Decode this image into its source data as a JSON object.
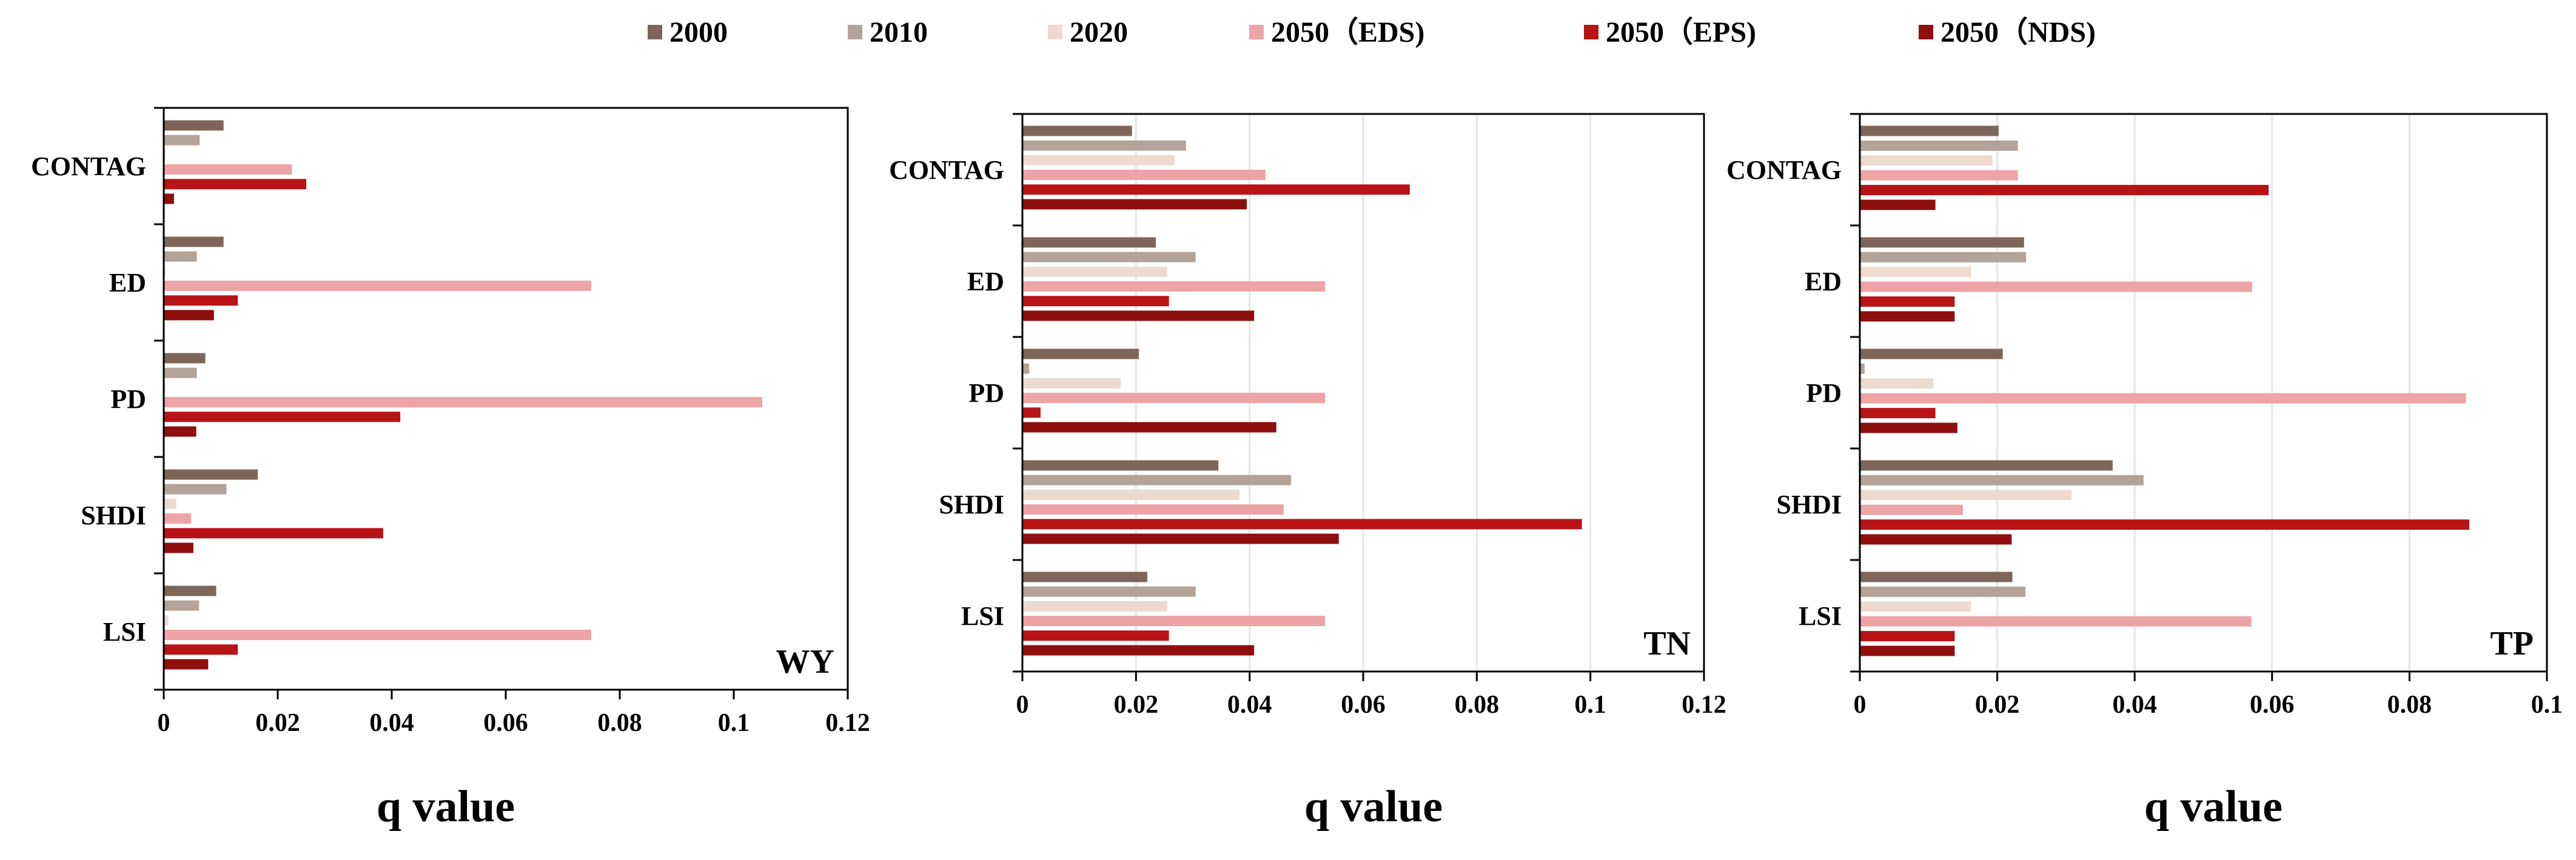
{
  "legend": [
    {
      "name": "2000",
      "color": "#7d6659"
    },
    {
      "name": "2010",
      "color": "#b3a398"
    },
    {
      "name": "2020",
      "color": "#ecdad0"
    },
    {
      "name": "2050（EDS)",
      "color": "#eca4a6"
    },
    {
      "name": "2050（EPS)",
      "color": "#b81317"
    },
    {
      "name": "2050（NDS)",
      "color": "#8f0e0e"
    }
  ],
  "chart_data": [
    {
      "type": "bar",
      "orientation": "horizontal",
      "title": "WY",
      "xlabel": "q value",
      "ylabel": "",
      "xlim": [
        0,
        0.12
      ],
      "xticks": [
        0,
        0.02,
        0.04,
        0.06,
        0.08,
        0.1,
        0.12
      ],
      "xtick_labels": [
        "0",
        "0.02",
        "0.04",
        "0.06",
        "0.08",
        "0.1",
        "0.12"
      ],
      "gridlines": false,
      "categories": [
        "CONTAG",
        "ED",
        "PD",
        "SHDI",
        "LSI"
      ],
      "series": [
        {
          "name": "2000",
          "values": [
            0.0105,
            0.0105,
            0.0073,
            0.0165,
            0.0092
          ]
        },
        {
          "name": "2010",
          "values": [
            0.0063,
            0.0058,
            0.0058,
            0.011,
            0.0062
          ]
        },
        {
          "name": "2020",
          "values": [
            0.0003,
            0.0003,
            0.0003,
            0.0022,
            0.0008
          ]
        },
        {
          "name": "2050（EDS)",
          "values": [
            0.0225,
            0.075,
            0.105,
            0.0048,
            0.075
          ]
        },
        {
          "name": "2050（EPS)",
          "values": [
            0.025,
            0.013,
            0.0415,
            0.0385,
            0.013
          ]
        },
        {
          "name": "2050（NDS)",
          "values": [
            0.0018,
            0.0088,
            0.0057,
            0.0052,
            0.0078
          ]
        }
      ]
    },
    {
      "type": "bar",
      "orientation": "horizontal",
      "title": "TN",
      "xlabel": "q value",
      "ylabel": "",
      "xlim": [
        0,
        0.12
      ],
      "xticks": [
        0,
        0.02,
        0.04,
        0.06,
        0.08,
        0.1,
        0.12
      ],
      "xtick_labels": [
        "0",
        "0.02",
        "0.04",
        "0.06",
        "0.08",
        "0.1",
        "0.12"
      ],
      "gridlines": true,
      "categories": [
        "CONTAG",
        "ED",
        "PD",
        "SHDI",
        "LSI"
      ],
      "series": [
        {
          "name": "2000",
          "values": [
            0.0193,
            0.0235,
            0.0205,
            0.0345,
            0.022
          ]
        },
        {
          "name": "2010",
          "values": [
            0.0288,
            0.0305,
            0.0012,
            0.0473,
            0.0305
          ]
        },
        {
          "name": "2020",
          "values": [
            0.0268,
            0.0255,
            0.0173,
            0.0382,
            0.0255
          ]
        },
        {
          "name": "2050（EDS)",
          "values": [
            0.0428,
            0.0533,
            0.0533,
            0.046,
            0.0533
          ]
        },
        {
          "name": "2050（EPS)",
          "values": [
            0.0682,
            0.0258,
            0.0032,
            0.0985,
            0.0258
          ]
        },
        {
          "name": "2050（NDS)",
          "values": [
            0.0395,
            0.0408,
            0.0447,
            0.0557,
            0.0408
          ]
        }
      ]
    },
    {
      "type": "bar",
      "orientation": "horizontal",
      "title": "TP",
      "xlabel": "q value",
      "ylabel": "",
      "xlim": [
        0,
        0.1
      ],
      "xticks": [
        0,
        0.02,
        0.04,
        0.06,
        0.08,
        0.1
      ],
      "xtick_labels": [
        "0",
        "0.02",
        "0.04",
        "0.06",
        "0.08",
        "0.1"
      ],
      "gridlines": true,
      "categories": [
        "CONTAG",
        "ED",
        "PD",
        "SHDI",
        "LSI"
      ],
      "series": [
        {
          "name": "2000",
          "values": [
            0.0202,
            0.0239,
            0.0208,
            0.0368,
            0.0222
          ]
        },
        {
          "name": "2010",
          "values": [
            0.023,
            0.0242,
            0.0007,
            0.0413,
            0.0241
          ]
        },
        {
          "name": "2020",
          "values": [
            0.0193,
            0.0162,
            0.0107,
            0.0308,
            0.0162
          ]
        },
        {
          "name": "2050（EDS)",
          "values": [
            0.023,
            0.0571,
            0.0882,
            0.015,
            0.057
          ]
        },
        {
          "name": "2050（EPS)",
          "values": [
            0.0595,
            0.0138,
            0.011,
            0.0887,
            0.0138
          ]
        },
        {
          "name": "2050（NDS)",
          "values": [
            0.011,
            0.0138,
            0.0142,
            0.0221,
            0.0138
          ]
        }
      ]
    }
  ]
}
